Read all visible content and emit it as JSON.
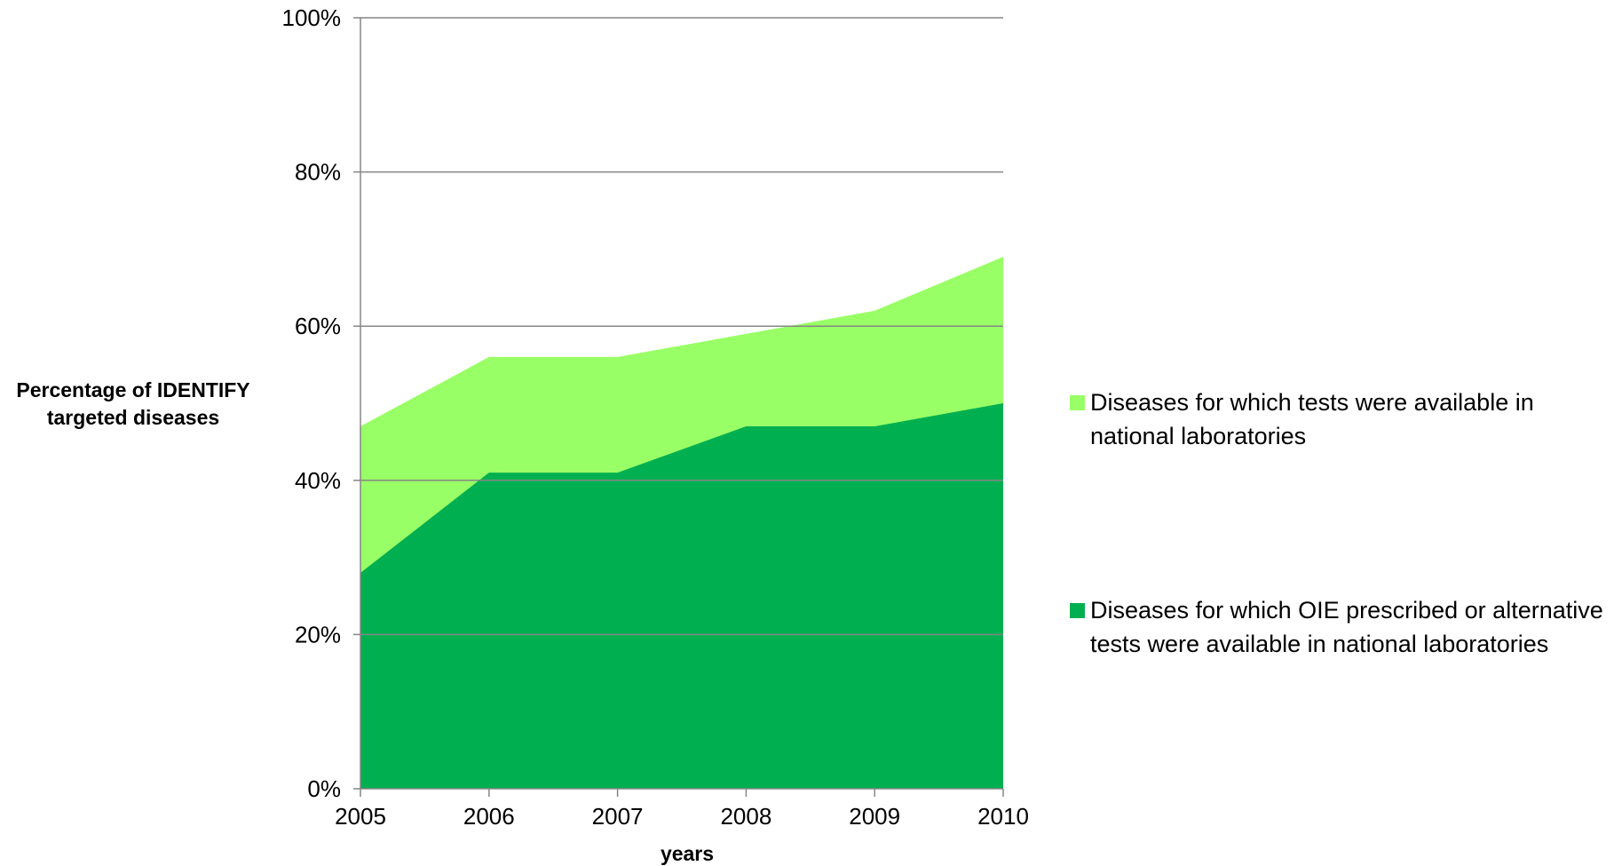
{
  "chart_data": {
    "type": "area",
    "stacked": false,
    "categories": [
      "2005",
      "2006",
      "2007",
      "2008",
      "2009",
      "2010"
    ],
    "series": [
      {
        "name": "Diseases for which tests were available in national laboratories",
        "values": [
          47,
          56,
          56,
          59,
          62,
          69
        ],
        "color": "#99FF66"
      },
      {
        "name": "Diseases for which OIE prescribed or alternative tests were available in national laboratories",
        "values": [
          28,
          41,
          41,
          47,
          47,
          50
        ],
        "color": "#00B050"
      }
    ],
    "ylim": [
      0,
      100
    ],
    "yticks": [
      "0%",
      "20%",
      "40%",
      "60%",
      "80%",
      "100%"
    ],
    "ylabel": "Percentage of IDENTIFY targeted diseases",
    "xlabel": "years",
    "grid": true,
    "legend_position": "right"
  }
}
